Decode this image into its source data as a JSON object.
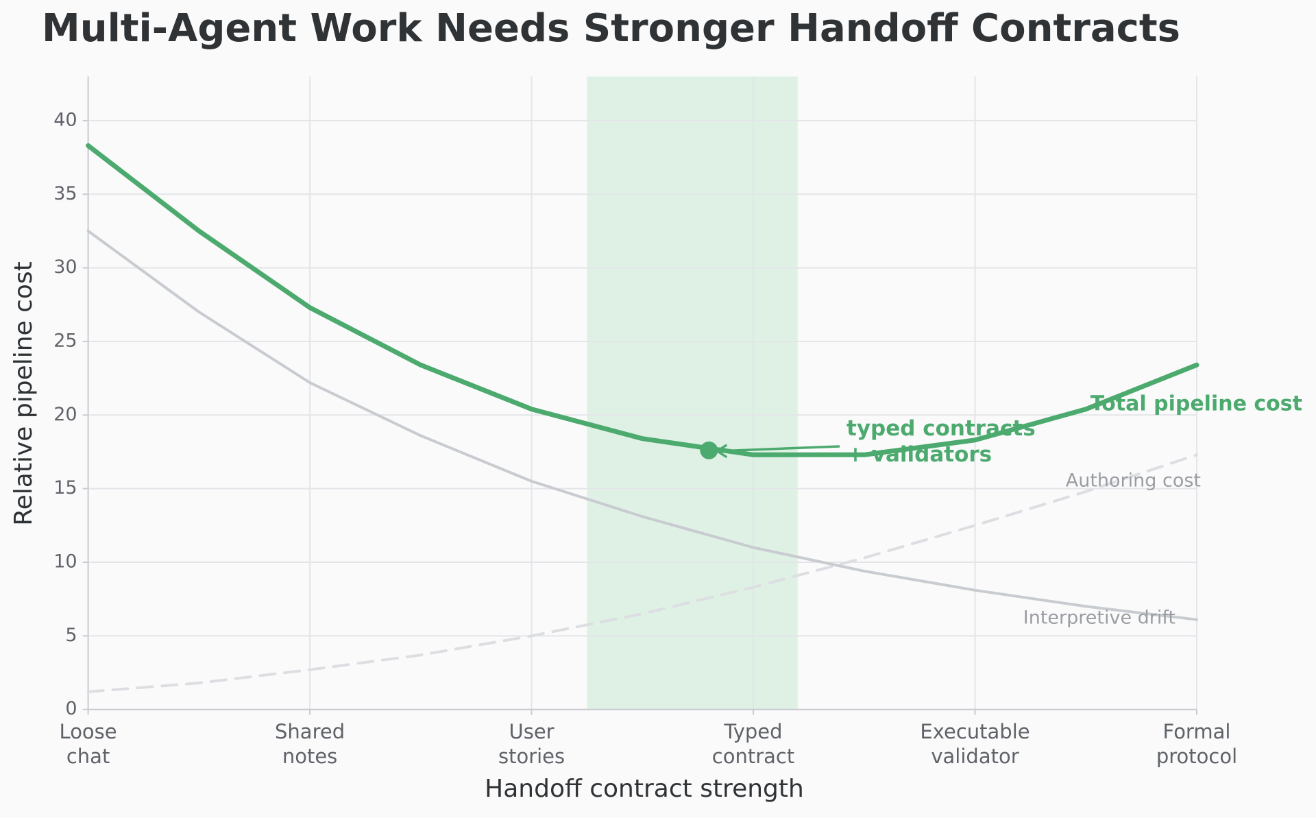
{
  "chart_data": {
    "type": "line",
    "title": "Multi-Agent Work Needs Stronger Handoff Contracts",
    "x_label": "Handoff contract strength",
    "y_label": "Relative pipeline cost",
    "x": [
      0,
      0.5,
      1,
      1.5,
      2,
      2.5,
      3,
      3.5,
      4,
      4.5,
      5
    ],
    "series": [
      {
        "name": "Total pipeline cost",
        "color": "#4caa6e",
        "width": 7,
        "dash": false,
        "values": [
          38.3,
          32.5,
          27.3,
          23.4,
          20.4,
          18.4,
          17.3,
          17.3,
          18.3,
          20.4,
          23.4
        ]
      },
      {
        "name": "Interpretive drift",
        "color": "#c8cbd0",
        "width": 4,
        "dash": false,
        "values": [
          32.5,
          27,
          22.2,
          18.6,
          15.5,
          13.1,
          11,
          9.4,
          8.1,
          7,
          6.1
        ]
      },
      {
        "name": "Authoring cost",
        "color": "#dcdee2",
        "width": 4,
        "dash": true,
        "values": [
          1.2,
          1.8,
          2.7,
          3.7,
          5,
          6.5,
          8.3,
          10.3,
          12.5,
          14.8,
          17.3
        ]
      }
    ],
    "xlim": [
      0,
      5
    ],
    "ylim": [
      0,
      43
    ],
    "xticks": [
      {
        "value": 0,
        "label": "Loose\nchat"
      },
      {
        "value": 1,
        "label": "Shared\nnotes"
      },
      {
        "value": 2,
        "label": "User\nstories"
      },
      {
        "value": 3,
        "label": "Typed\ncontract"
      },
      {
        "value": 4,
        "label": "Executable\nvalidator"
      },
      {
        "value": 5,
        "label": "Formal\nprotocol"
      }
    ],
    "yticks": [
      0,
      5,
      10,
      15,
      20,
      25,
      30,
      35,
      40
    ],
    "grid": true,
    "highlight_range": [
      2.25,
      3.2
    ],
    "highlight_color": "#dff1e5",
    "annotation": {
      "text": "typed contracts\n+ validators",
      "x": 2.8,
      "y": 17.6
    }
  }
}
